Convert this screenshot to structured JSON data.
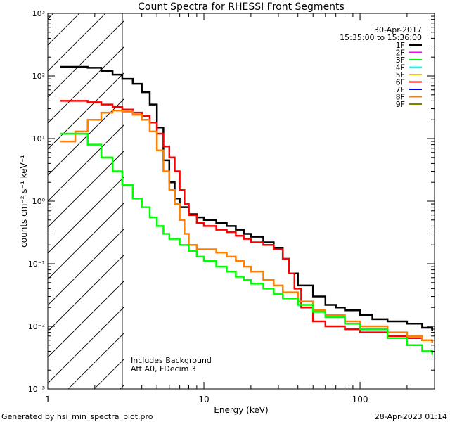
{
  "chart_data": {
    "type": "line",
    "title": "Count Spectra for RHESSI Front Segments",
    "xlabel": "Energy (keV)",
    "ylabel": "counts cm⁻² s⁻¹ keV⁻¹",
    "xscale": "log",
    "yscale": "log",
    "xlim": [
      1,
      300
    ],
    "ylim": [
      0.001,
      1000
    ],
    "x_ticks": [
      "1",
      "10",
      "100"
    ],
    "y_ticks": [
      "10⁻³",
      "10⁻²",
      "10⁻¹",
      "10⁰",
      "10¹",
      "10²",
      "10³"
    ],
    "date": "30-Apr-2017",
    "time_range": "15:35:00 to 15:36:00",
    "hatched_region": {
      "x_from": 1,
      "x_to": 3
    },
    "annotations": [
      "Includes Background",
      "Att A0, FDecim 3"
    ],
    "footer_left": "Generated by hsi_min_spectra_plot.pro",
    "footer_right": "28-Apr-2023 01:14",
    "legend": [
      {
        "name": "1F",
        "color": "#000000"
      },
      {
        "name": "2F",
        "color": "#ff00ff"
      },
      {
        "name": "3F",
        "color": "#00ff00"
      },
      {
        "name": "4F",
        "color": "#00ffff"
      },
      {
        "name": "5F",
        "color": "#ffbf00"
      },
      {
        "name": "6F",
        "color": "#ff0000"
      },
      {
        "name": "7F",
        "color": "#0000ff"
      },
      {
        "name": "8F",
        "color": "#ff8000"
      },
      {
        "name": "9F",
        "color": "#808000"
      }
    ],
    "series": [
      {
        "name": "1F",
        "color": "#000000",
        "points": [
          [
            1.2,
            140
          ],
          [
            1.5,
            140
          ],
          [
            1.8,
            135
          ],
          [
            2.2,
            120
          ],
          [
            2.6,
            105
          ],
          [
            3.0,
            90
          ],
          [
            3.5,
            75
          ],
          [
            4.0,
            55
          ],
          [
            4.5,
            35
          ],
          [
            5.0,
            15
          ],
          [
            5.5,
            4.5
          ],
          [
            6.0,
            2.0
          ],
          [
            6.5,
            1.1
          ],
          [
            7.0,
            0.8
          ],
          [
            8.0,
            0.62
          ],
          [
            9.0,
            0.55
          ],
          [
            10,
            0.5
          ],
          [
            12,
            0.45
          ],
          [
            14,
            0.4
          ],
          [
            16,
            0.35
          ],
          [
            18,
            0.3
          ],
          [
            20,
            0.27
          ],
          [
            24,
            0.22
          ],
          [
            28,
            0.18
          ],
          [
            32,
            0.12
          ],
          [
            35,
            0.07
          ],
          [
            40,
            0.045
          ],
          [
            50,
            0.03
          ],
          [
            60,
            0.022
          ],
          [
            70,
            0.02
          ],
          [
            80,
            0.018
          ],
          [
            100,
            0.015
          ],
          [
            120,
            0.013
          ],
          [
            150,
            0.012
          ],
          [
            200,
            0.011
          ],
          [
            250,
            0.0095
          ],
          [
            290,
            0.0085
          ]
        ]
      },
      {
        "name": "6F",
        "color": "#ff0000",
        "points": [
          [
            1.2,
            40
          ],
          [
            1.5,
            40
          ],
          [
            1.8,
            38
          ],
          [
            2.2,
            35
          ],
          [
            2.6,
            32
          ],
          [
            3.0,
            29
          ],
          [
            3.5,
            26
          ],
          [
            4.0,
            23
          ],
          [
            4.5,
            18
          ],
          [
            5.0,
            12
          ],
          [
            5.5,
            7.5
          ],
          [
            6.0,
            5.0
          ],
          [
            6.5,
            3.0
          ],
          [
            7.0,
            1.5
          ],
          [
            7.5,
            0.9
          ],
          [
            8.0,
            0.6
          ],
          [
            9.0,
            0.45
          ],
          [
            10,
            0.4
          ],
          [
            12,
            0.35
          ],
          [
            14,
            0.32
          ],
          [
            16,
            0.28
          ],
          [
            18,
            0.25
          ],
          [
            20,
            0.22
          ],
          [
            24,
            0.2
          ],
          [
            28,
            0.17
          ],
          [
            32,
            0.12
          ],
          [
            35,
            0.07
          ],
          [
            38,
            0.04
          ],
          [
            42,
            0.02
          ],
          [
            50,
            0.012
          ],
          [
            60,
            0.01
          ],
          [
            80,
            0.009
          ],
          [
            100,
            0.008
          ],
          [
            150,
            0.007
          ],
          [
            200,
            0.0065
          ],
          [
            250,
            0.006
          ],
          [
            290,
            0.0055
          ]
        ]
      },
      {
        "name": "8F",
        "color": "#ff8000",
        "points": [
          [
            1.2,
            9
          ],
          [
            1.5,
            13
          ],
          [
            1.8,
            20
          ],
          [
            2.2,
            26
          ],
          [
            2.6,
            28
          ],
          [
            3.0,
            27
          ],
          [
            3.5,
            24
          ],
          [
            4.0,
            20
          ],
          [
            4.5,
            13
          ],
          [
            5.0,
            6.5
          ],
          [
            5.5,
            3.0
          ],
          [
            6.0,
            1.5
          ],
          [
            6.5,
            0.9
          ],
          [
            7.0,
            0.5
          ],
          [
            7.5,
            0.3
          ],
          [
            8.0,
            0.2
          ],
          [
            9.0,
            0.17
          ],
          [
            10,
            0.17
          ],
          [
            12,
            0.15
          ],
          [
            14,
            0.13
          ],
          [
            16,
            0.11
          ],
          [
            18,
            0.09
          ],
          [
            20,
            0.075
          ],
          [
            24,
            0.055
          ],
          [
            28,
            0.045
          ],
          [
            32,
            0.035
          ],
          [
            40,
            0.025
          ],
          [
            50,
            0.018
          ],
          [
            60,
            0.015
          ],
          [
            80,
            0.012
          ],
          [
            100,
            0.01
          ],
          [
            150,
            0.008
          ],
          [
            200,
            0.007
          ],
          [
            250,
            0.006
          ],
          [
            290,
            0.0055
          ]
        ]
      },
      {
        "name": "3F",
        "color": "#00ff00",
        "points": [
          [
            1.2,
            12
          ],
          [
            1.5,
            12
          ],
          [
            1.8,
            8
          ],
          [
            2.2,
            5
          ],
          [
            2.6,
            3
          ],
          [
            3.0,
            1.8
          ],
          [
            3.5,
            1.1
          ],
          [
            4.0,
            0.8
          ],
          [
            4.5,
            0.55
          ],
          [
            5.0,
            0.4
          ],
          [
            5.5,
            0.3
          ],
          [
            6.0,
            0.25
          ],
          [
            7.0,
            0.2
          ],
          [
            8.0,
            0.16
          ],
          [
            9.0,
            0.13
          ],
          [
            10,
            0.11
          ],
          [
            12,
            0.09
          ],
          [
            14,
            0.075
          ],
          [
            16,
            0.062
          ],
          [
            18,
            0.055
          ],
          [
            20,
            0.048
          ],
          [
            24,
            0.04
          ],
          [
            28,
            0.033
          ],
          [
            32,
            0.028
          ],
          [
            40,
            0.022
          ],
          [
            50,
            0.017
          ],
          [
            60,
            0.014
          ],
          [
            80,
            0.011
          ],
          [
            100,
            0.009
          ],
          [
            150,
            0.0065
          ],
          [
            200,
            0.005
          ],
          [
            250,
            0.004
          ],
          [
            290,
            0.0035
          ]
        ]
      }
    ]
  }
}
